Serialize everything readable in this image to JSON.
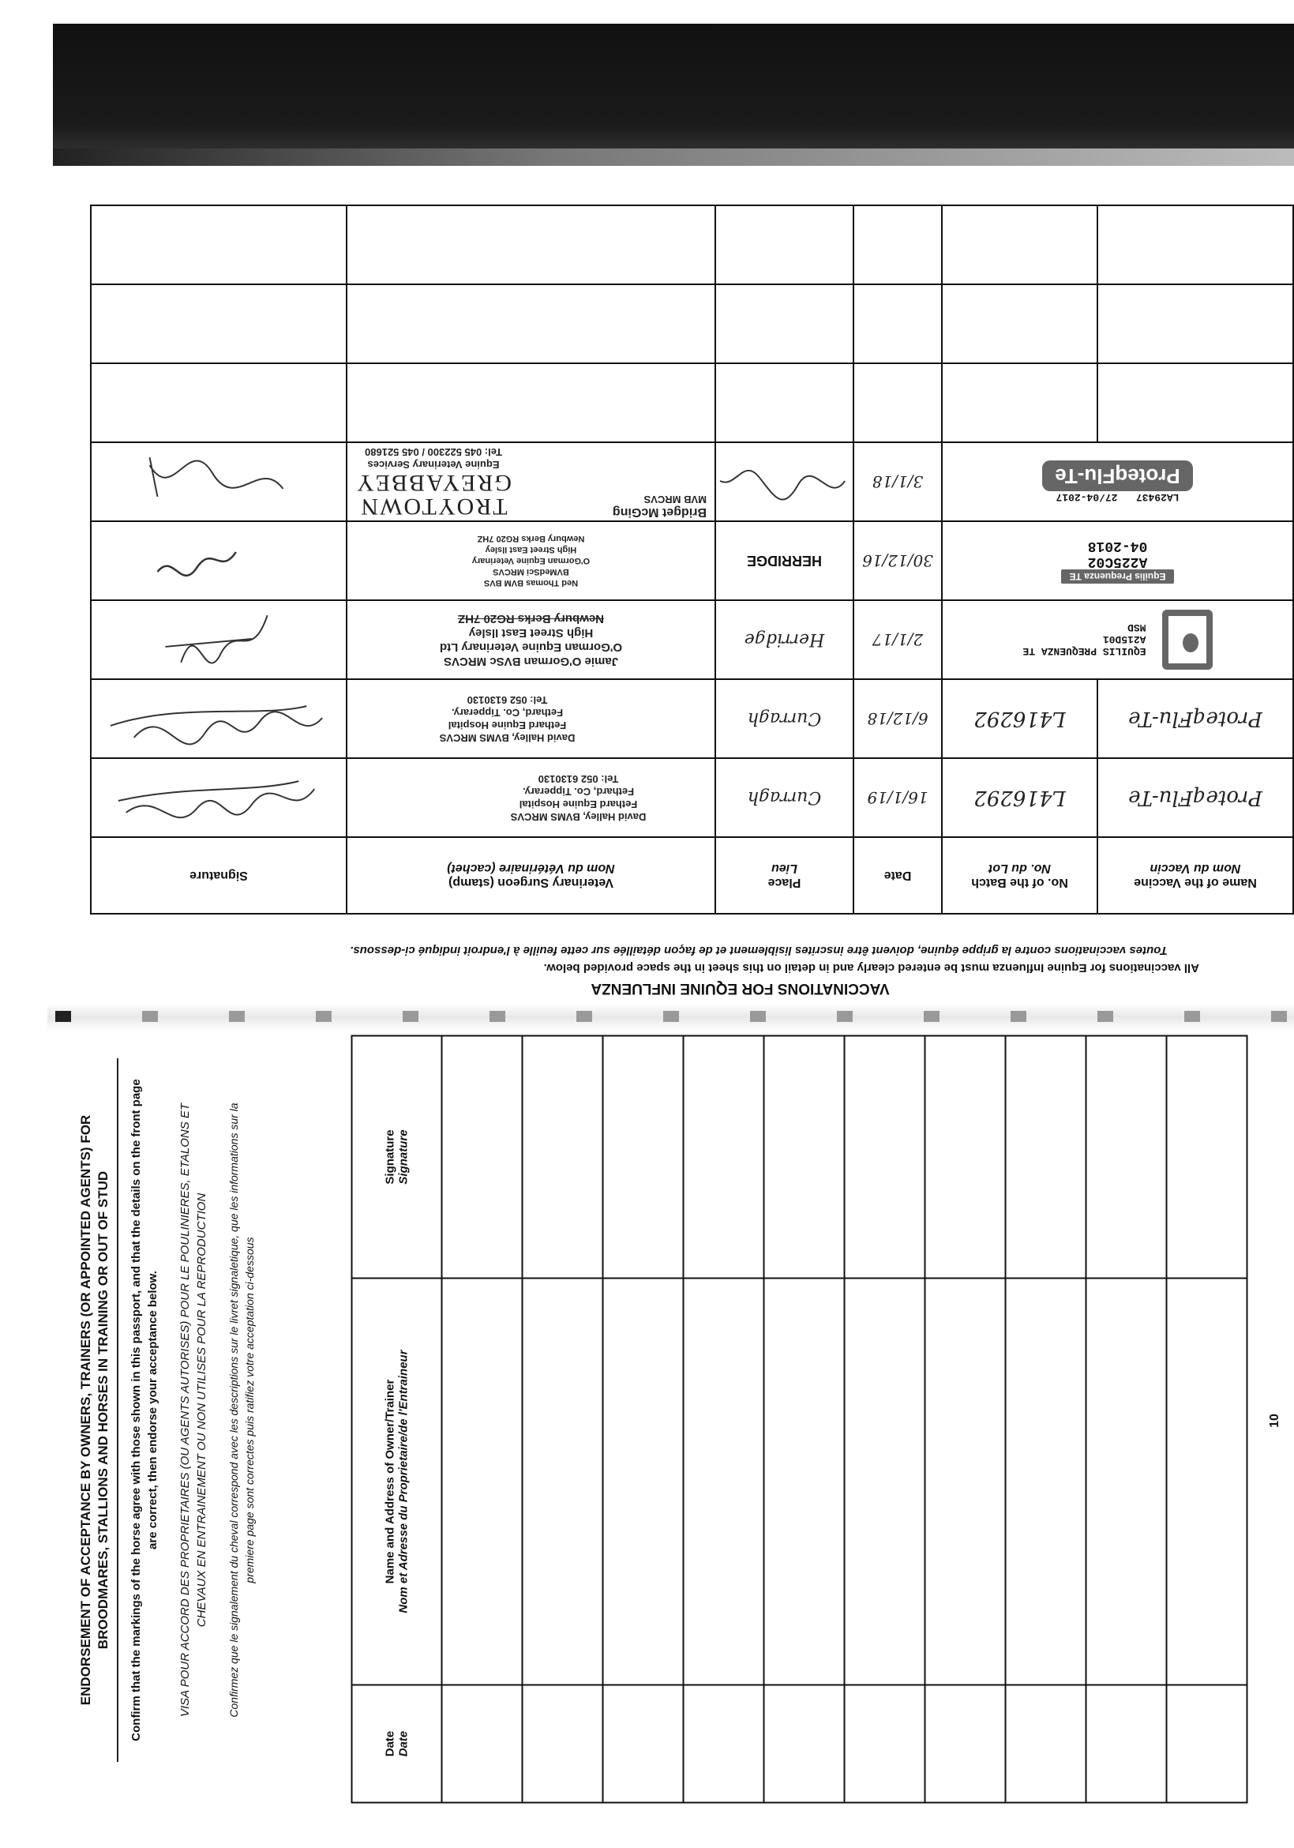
{
  "vaccination_section": {
    "title": "VACCINATIONS FOR EQUINE INFLUENZA",
    "instruction_en": "All vaccinations for Equine Influenza must be entered clearly and in detail on this sheet in the space provided below.",
    "instruction_fr": "Toutes vaccinations contre la grippe équine, doivent être inscrites lisiblement et de façon détaillée sur cette feuille à l'endroit indiqué ci-dessous.",
    "headers": {
      "vaccine": {
        "en": "Name of the Vaccine",
        "fr": "Nom du Vaccin"
      },
      "batch": {
        "en": "No. of the Batch",
        "fr": "No. du Lot"
      },
      "date": {
        "en": "Date"
      },
      "place": {
        "en": "Place",
        "fr": "Lieu"
      },
      "vet": {
        "en": "Veterinary Surgeon (stamp)",
        "fr": "Nom du Vétérinaire (cachet)"
      },
      "signature": {
        "en": "Signature"
      }
    },
    "rows": [
      {
        "vaccine": "ProteqFlu-Te",
        "batch": "L416292",
        "date": "16/1/19",
        "place": "Curragh",
        "vet_stamp": [
          "David Halley, BVMS MRCVS",
          "Fethard Equine Hospital",
          "Fethard, Co. Tipperary.",
          "Tel: 052 6130130"
        ]
      },
      {
        "vaccine": "ProteqFlu-Te",
        "batch": "L416292",
        "date": "6/12/18",
        "place": "Curragh",
        "vet_stamp": [
          "David Halley, BVMS MRCVS",
          "Fethard Equine Hospital",
          "Fethard, Co. Tipperary.",
          "Tel: 052 6130130"
        ]
      },
      {
        "sticker_name": "EQUILIS PREQUENZA TE",
        "sticker_batch": "A215D01",
        "sticker_maker": "MSD",
        "date": "2/1/17",
        "place": "Herridge",
        "vet_stamp": [
          "Jamie O'Gorman BVSc MRCVS",
          "O'Gorman Equine Veterinary Ltd",
          "High Street East Ilsley",
          "Newbury Berks RG20 7HZ"
        ]
      },
      {
        "sticker_name": "Equilis Prequenza TE",
        "sticker_batch": "A225C02",
        "sticker_expiry": "04-2018",
        "date": "30/12/16",
        "place": "HERRIDGE",
        "vet_stamp": [
          "Ned Thomas BVM BVS",
          "BVMedSci MRCVS",
          "O'Gorman Equine Veterinary",
          "High Street East Ilsley",
          "Newbury Berks RG20 7HZ"
        ]
      },
      {
        "sticker_name": "ProteqFlu-Te",
        "sticker_batch": "LA29437",
        "sticker_expiry": "27/04-2017",
        "date": "3/1/18",
        "vet_stamp_title": [
          "TROYTOWN",
          "GREYABBEY"
        ],
        "vet_stamp": [
          "Equine Veterinary Services",
          "Tel: 045 522300 / 045 521680"
        ],
        "vet_name": [
          "Bridget McGing",
          "MVB MRCVS"
        ]
      }
    ]
  },
  "endorsement": {
    "title": "ENDORSEMENT OF ACCEPTANCE BY OWNERS, TRAINERS (OR APPOINTED AGENTS) FOR BROODMARES, STALLIONS AND HORSES IN TRAINING OR OUT OF STUD",
    "text_en": "Confirm that the markings of the horse agree with those shown in this passport, and that the details on the front page are correct, then endorse your acceptance below.",
    "title_fr": "VISA POUR ACCORD DES PROPRIETAIRES (OU AGENTS AUTORISES) POUR LE POULINIERES, ETALONS ET CHEVAUX EN ENTRAINEMENT OU NON UTILISES POUR LA REPRODUCTION",
    "text_fr": "Confirmez que le signalement du cheval correspond avec les descriptions sur le livret signaletique, que les informations sur la premiere page sont correctes puis ratifiez votre acceptation ci-dessous",
    "headers": {
      "date": {
        "en": "Date",
        "fr": "Date"
      },
      "name": {
        "en": "Name and Address of Owner/Trainer",
        "fr": "Nom et Adresse du Proprietaire/de l'Entraineur"
      },
      "signature": {
        "en": "Signature",
        "fr": "Signature"
      }
    }
  },
  "page_number": "10",
  "colors": {
    "ink": "#111111",
    "sticker": "#666666",
    "scan_band": "#111111"
  }
}
